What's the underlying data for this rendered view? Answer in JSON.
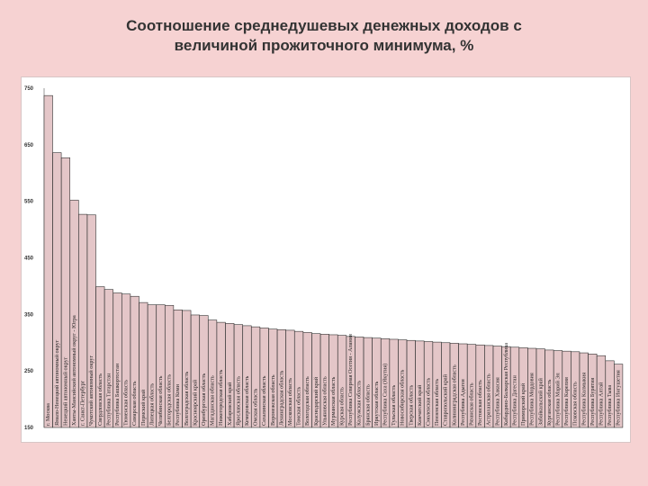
{
  "title_line1": "Соотношение среднедушевых денежных доходов с",
  "title_line2": "величиной прожиточного минимума, %",
  "chart_data": {
    "type": "bar",
    "title": "Соотношение среднедушевых денежных доходов с величиной прожиточного минимума, %",
    "ylim": [
      150,
      750
    ],
    "yticks": [
      150,
      250,
      350,
      450,
      550,
      650,
      750
    ],
    "grid": false,
    "bar_color": "#e4c6c8",
    "categories": [
      "г. Москва",
      "Ямало-Ненецкий автономный округ",
      "Ненецкий автономный округ",
      "Ханты-Мансийский автономный округ - Югра",
      "г. Санкт-Петербург",
      "Чукотский автономный округ",
      "Свердловская область",
      "Республика Татарстан",
      "Республика Башкортостан",
      "Тюменская область",
      "Самарская область",
      "Пермский край",
      "Липецкая область",
      "Челябинская область",
      "Белгородская область",
      "Республика Коми",
      "Волгоградская область",
      "Красноярский край",
      "Оренбургская область",
      "Магаданская область",
      "Нижегородская область",
      "Хабаровский край",
      "Ярославская область",
      "Кемеровская область",
      "Омская область",
      "Сахалинская область",
      "Воронежская область",
      "Ленинградская область",
      "Московская область",
      "Томская область",
      "Вологодская область",
      "Краснодарский край",
      "Ульяновская область",
      "Мурманская область",
      "Курская область",
      "Республика Северная Осетия - Алания",
      "Калужская область",
      "Брянская область",
      "Иркутская область",
      "Республика Саха (Якутия)",
      "Тульская область",
      "Новосибирская область",
      "Тверская область",
      "Камчатский край",
      "Смоленская область",
      "Пензенская область",
      "Ставропольский край",
      "Калининградская область",
      "Республика Адыгея",
      "Рязанская область",
      "Ростовская область",
      "Астраханская область",
      "Республика Хакасия",
      "Кабардино-Балкарская Республика",
      "Республика Дагестан",
      "Приморский край",
      "Республика Мордовия",
      "Забайкальский край",
      "Курганская область",
      "Республика Марий Эл",
      "Республика Карелия",
      "Псковская область",
      "Республика Калмыкия",
      "Республика Бурятия",
      "Республика Алтай",
      "Республика Тыва",
      "Республика Ингушетия"
    ],
    "values": [
      737,
      636,
      627,
      552,
      527,
      526,
      399,
      394,
      388,
      386,
      382,
      371,
      367,
      367,
      366,
      358,
      357,
      349,
      348,
      340,
      336,
      334,
      332,
      330,
      328,
      326,
      324,
      323,
      322,
      320,
      318,
      316,
      315,
      314,
      313,
      311,
      310,
      309,
      308,
      307,
      306,
      305,
      304,
      303,
      302,
      301,
      300,
      299,
      298,
      297,
      296,
      295,
      294,
      293,
      292,
      291,
      290,
      289,
      287,
      286,
      285,
      284,
      282,
      280,
      277,
      268,
      262
    ]
  }
}
